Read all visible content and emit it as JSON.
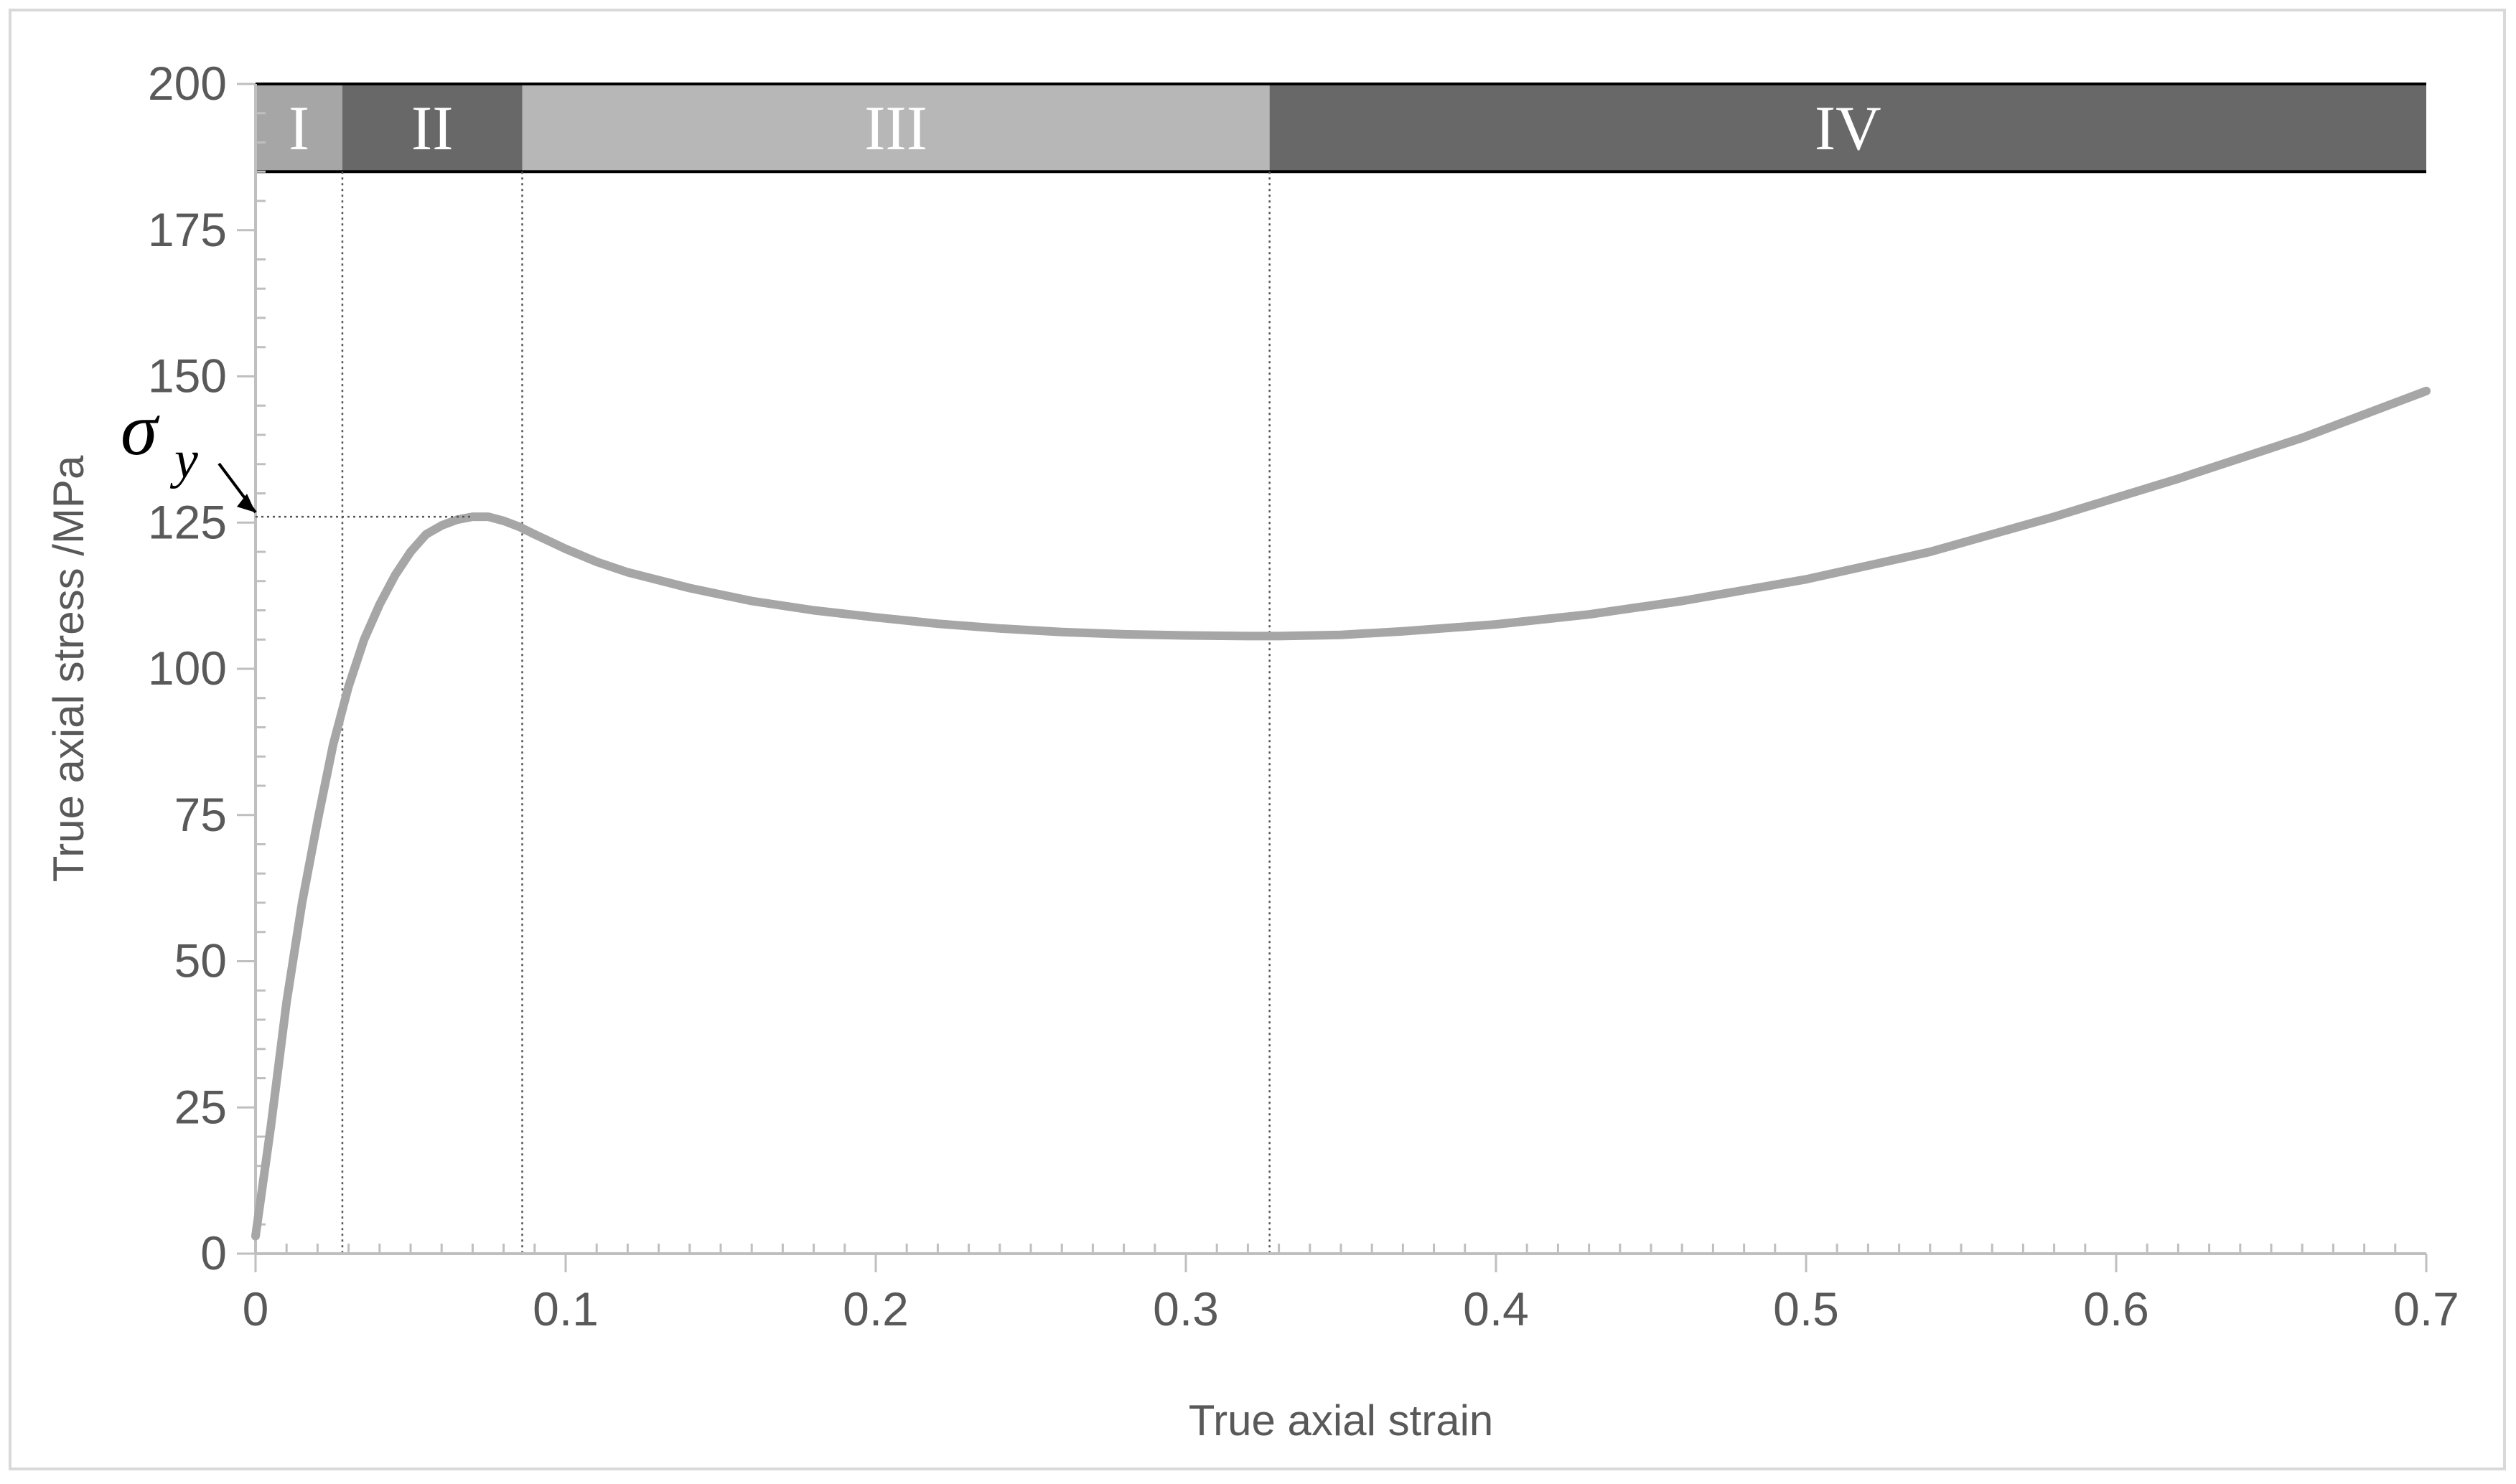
{
  "chart_data": {
    "type": "line",
    "xlabel": "True axial strain",
    "ylabel": "True axial stress /MPa",
    "xlim": [
      0,
      0.7
    ],
    "ylim": [
      0,
      200
    ],
    "x_ticks": [
      "0",
      "0.1",
      "0.2",
      "0.3",
      "0.4",
      "0.5",
      "0.6",
      "0.7"
    ],
    "y_ticks": [
      "0",
      "25",
      "50",
      "75",
      "100",
      "125",
      "150",
      "175",
      "200"
    ],
    "grid": false,
    "series": [
      {
        "x": [
          0,
          0.005,
          0.01,
          0.015,
          0.02,
          0.025,
          0.03,
          0.035,
          0.04,
          0.045,
          0.05,
          0.055,
          0.06,
          0.065,
          0.07,
          0.075,
          0.08,
          0.085,
          0.09,
          0.1,
          0.11,
          0.12,
          0.14,
          0.16,
          0.18,
          0.2,
          0.22,
          0.24,
          0.26,
          0.28,
          0.3,
          0.32,
          0.33,
          0.35,
          0.37,
          0.4,
          0.43,
          0.46,
          0.5,
          0.54,
          0.58,
          0.62,
          0.66,
          0.7
        ],
        "y": [
          3,
          22,
          43,
          60,
          74,
          87,
          97,
          105,
          111,
          116,
          120,
          123,
          124.5,
          125.5,
          126,
          126,
          125.3,
          124.3,
          123,
          120.5,
          118.3,
          116.5,
          113.8,
          111.6,
          110,
          108.8,
          107.7,
          106.9,
          106.3,
          105.9,
          105.7,
          105.6,
          105.6,
          105.8,
          106.4,
          107.6,
          109.3,
          111.6,
          115.3,
          120,
          126,
          132.5,
          139.5,
          147.5
        ],
        "color": "#a6a6a6"
      }
    ],
    "regions": [
      {
        "label": "I",
        "x_start": 0,
        "x_end": 0.028,
        "color": "#a6a6a6"
      },
      {
        "label": "II",
        "x_start": 0.028,
        "x_end": 0.086,
        "color": "#686868"
      },
      {
        "label": "III",
        "x_start": 0.086,
        "x_end": 0.327,
        "color": "#b7b7b7"
      },
      {
        "label": "IV",
        "x_start": 0.327,
        "x_end": 0.7,
        "color": "#686868"
      }
    ],
    "region_band_ylim": [
      185,
      200
    ],
    "boundaries": [
      0.028,
      0.086,
      0.327
    ],
    "yield": {
      "label": "σ",
      "subscript": "y",
      "x": 0.07,
      "y": 126
    }
  }
}
